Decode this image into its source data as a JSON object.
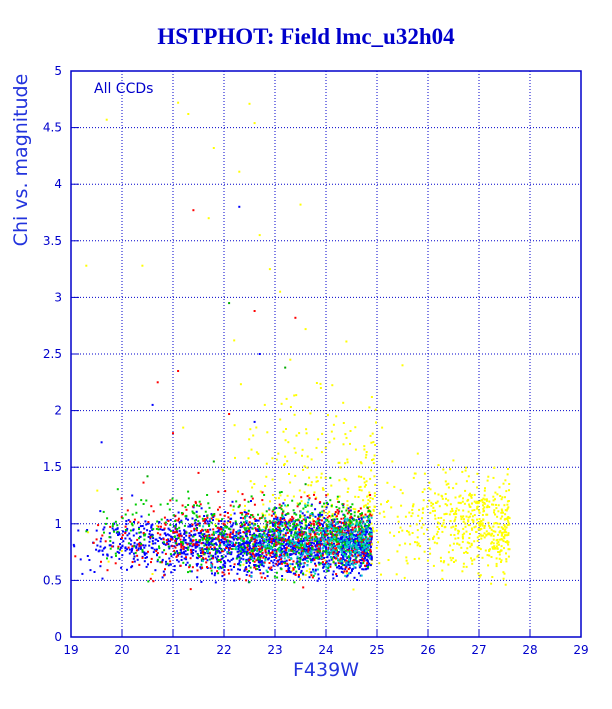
{
  "chart_data": {
    "type": "scatter",
    "title": "HSTPHOT: Field lmc_u32h04",
    "xlabel": "F439W",
    "ylabel": "Chi vs. magnitude",
    "xlim": [
      19,
      29
    ],
    "ylim": [
      0,
      5
    ],
    "xticks": [
      "19",
      "20",
      "21",
      "22",
      "23",
      "24",
      "25",
      "26",
      "27",
      "28",
      "29"
    ],
    "yticks": [
      "0",
      "0.5",
      "1",
      "1.5",
      "2",
      "2.5",
      "3",
      "3.5",
      "4",
      "4.5",
      "5"
    ],
    "grid": true,
    "annotation": "All CCDs",
    "series": [
      {
        "color": "#ffff00",
        "points": [
          [
            19.3,
            3.28
          ],
          [
            19.7,
            4.57
          ],
          [
            20.4,
            3.28
          ],
          [
            21.1,
            4.72
          ],
          [
            21.3,
            4.62
          ],
          [
            21.8,
            4.32
          ],
          [
            22.3,
            4.11
          ],
          [
            22.5,
            4.71
          ],
          [
            22.6,
            4.54
          ],
          [
            23.5,
            3.82
          ],
          [
            22.9,
            3.25
          ],
          [
            23.1,
            3.05
          ],
          [
            22.2,
            2.62
          ],
          [
            23.6,
            2.72
          ],
          [
            24.4,
            2.61
          ],
          [
            21.7,
            3.7
          ],
          [
            22.7,
            3.55
          ],
          [
            25.5,
            2.4
          ],
          [
            24.9,
            2.12
          ],
          [
            21.2,
            1.85
          ],
          [
            25.3,
            1.55
          ],
          [
            25.8,
            1.62
          ],
          [
            26.3,
            1.48
          ],
          [
            26.8,
            1.42
          ],
          [
            27.3,
            1.12
          ],
          [
            27.6,
            1.05
          ],
          [
            27.2,
            0.72
          ],
          [
            26.7,
            0.62
          ],
          [
            25.6,
            0.65
          ],
          [
            24.9,
            0.82
          ],
          [
            25.1,
            1.85
          ],
          [
            23.3,
            2.45
          ],
          [
            23.9,
            2.2
          ],
          [
            24.2,
            1.95
          ],
          [
            22.8,
            2.05
          ]
        ]
      },
      {
        "color": "#ff0000",
        "points": [
          [
            21.4,
            3.77
          ],
          [
            22.6,
            2.88
          ],
          [
            23.4,
            2.82
          ],
          [
            20.7,
            2.25
          ],
          [
            21.1,
            2.35
          ],
          [
            21.5,
            1.45
          ],
          [
            22.1,
            1.97
          ],
          [
            21.0,
            1.8
          ]
        ]
      },
      {
        "color": "#00aa00",
        "points": [
          [
            22.1,
            2.95
          ],
          [
            23.2,
            2.38
          ],
          [
            20.5,
            1.42
          ],
          [
            21.8,
            1.55
          ],
          [
            23.6,
            1.35
          ]
        ]
      },
      {
        "color": "#0000ff",
        "points": [
          [
            22.3,
            3.8
          ],
          [
            22.7,
            2.5
          ],
          [
            19.6,
            1.72
          ],
          [
            20.6,
            2.05
          ],
          [
            22.6,
            1.9
          ],
          [
            20.2,
            1.25
          ]
        ]
      }
    ],
    "clusters": [
      {
        "color": "#ffff00",
        "count": 520,
        "x": [
          24.9,
          27.6
        ],
        "y_center": 1.0,
        "y_spread": 0.28
      },
      {
        "color": "#ffff00",
        "count": 280,
        "x": [
          21.8,
          25.0
        ],
        "y_center": 1.3,
        "y_spread": 0.5
      },
      {
        "color": "#ffff00",
        "count": 90,
        "x": [
          19.0,
          25.0
        ],
        "y_center": 0.95,
        "y_spread": 0.25
      },
      {
        "color": "#0000ff",
        "count": 1900,
        "x": [
          19.0,
          24.9
        ],
        "y_center": 0.82,
        "y_spread": 0.17
      },
      {
        "color": "#ff0000",
        "count": 650,
        "x": [
          19.0,
          24.9
        ],
        "y_center": 0.88,
        "y_spread": 0.22
      },
      {
        "color": "#00cc00",
        "count": 650,
        "x": [
          19.0,
          24.9
        ],
        "y_center": 0.9,
        "y_spread": 0.22
      },
      {
        "color": "#00cccc",
        "count": 350,
        "x": [
          21.5,
          24.9
        ],
        "y_center": 0.85,
        "y_spread": 0.17
      }
    ]
  }
}
